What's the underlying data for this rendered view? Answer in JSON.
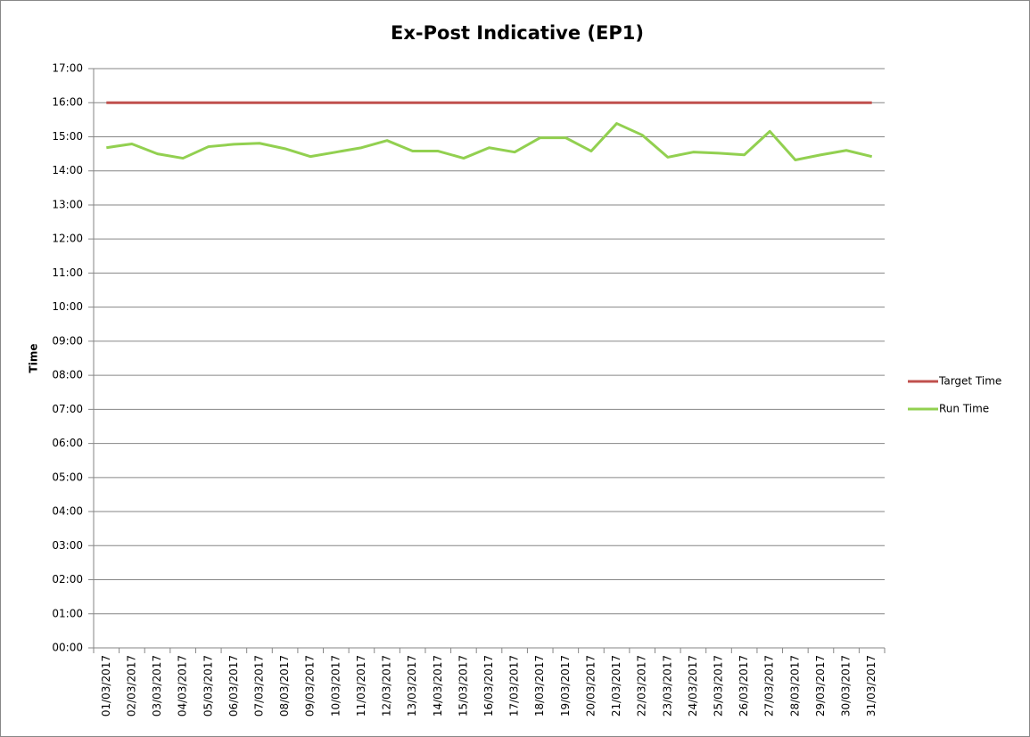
{
  "chart_data": {
    "type": "line",
    "title": "Ex-Post Indicative (EP1)",
    "y_label": "Time",
    "categories": [
      "01/03/2017",
      "02/03/2017",
      "03/03/2017",
      "04/03/2017",
      "05/03/2017",
      "06/03/2017",
      "07/03/2017",
      "08/03/2017",
      "09/03/2017",
      "10/03/2017",
      "11/03/2017",
      "12/03/2017",
      "13/03/2017",
      "14/03/2017",
      "15/03/2017",
      "16/03/2017",
      "17/03/2017",
      "18/03/2017",
      "19/03/2017",
      "20/03/2017",
      "21/03/2017",
      "22/03/2017",
      "23/03/2017",
      "24/03/2017",
      "25/03/2017",
      "26/03/2017",
      "27/03/2017",
      "28/03/2017",
      "29/03/2017",
      "30/03/2017",
      "31/03/2017"
    ],
    "series": [
      {
        "name": "Target Time",
        "color": "#c0504d",
        "values": [
          16,
          16,
          16,
          16,
          16,
          16,
          16,
          16,
          16,
          16,
          16,
          16,
          16,
          16,
          16,
          16,
          16,
          16,
          16,
          16,
          16,
          16,
          16,
          16,
          16,
          16,
          16,
          16,
          16,
          16,
          16
        ]
      },
      {
        "name": "Run Time",
        "color": "#92d050",
        "values": [
          14.68,
          14.79,
          14.5,
          14.37,
          14.71,
          14.78,
          14.81,
          14.65,
          14.42,
          14.55,
          14.68,
          14.89,
          14.58,
          14.58,
          14.37,
          14.68,
          14.55,
          14.97,
          14.97,
          14.58,
          15.39,
          15.05,
          14.4,
          14.55,
          14.52,
          14.47,
          15.16,
          14.32,
          14.47,
          14.6,
          14.42
        ]
      }
    ],
    "ylim": [
      0,
      17
    ],
    "yticks": [
      {
        "value": 0,
        "label": "00:00"
      },
      {
        "value": 1,
        "label": "01:00"
      },
      {
        "value": 2,
        "label": "02:00"
      },
      {
        "value": 3,
        "label": "03:00"
      },
      {
        "value": 4,
        "label": "04:00"
      },
      {
        "value": 5,
        "label": "05:00"
      },
      {
        "value": 6,
        "label": "06:00"
      },
      {
        "value": 7,
        "label": "07:00"
      },
      {
        "value": 8,
        "label": "08:00"
      },
      {
        "value": 9,
        "label": "09:00"
      },
      {
        "value": 10,
        "label": "10:00"
      },
      {
        "value": 11,
        "label": "11:00"
      },
      {
        "value": 12,
        "label": "12:00"
      },
      {
        "value": 13,
        "label": "13:00"
      },
      {
        "value": 14,
        "label": "14:00"
      },
      {
        "value": 15,
        "label": "15:00"
      },
      {
        "value": 16,
        "label": "16:00"
      },
      {
        "value": 17,
        "label": "17:00"
      }
    ],
    "grid": true,
    "legend": "right"
  }
}
